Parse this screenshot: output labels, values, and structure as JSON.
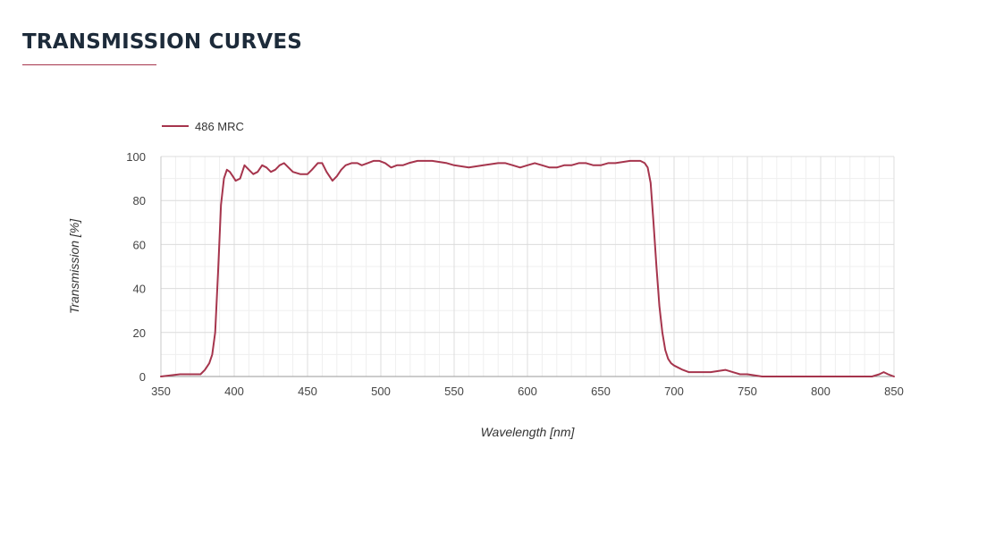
{
  "header": {
    "title": "TRANSMISSION CURVES"
  },
  "colors": {
    "title": "#1d2b3a",
    "accent": "#a6354d",
    "grid": "#dcdcdc",
    "axis": "#c8c8c8"
  },
  "chart_data": {
    "type": "line",
    "title": "",
    "xlabel": "Wavelength [nm]",
    "ylabel": "Transmission [%]",
    "xlim": [
      350,
      850
    ],
    "ylim": [
      0,
      100
    ],
    "xticks": [
      350,
      400,
      450,
      500,
      550,
      600,
      650,
      700,
      750,
      800,
      850
    ],
    "yticks": [
      0,
      20,
      40,
      60,
      80,
      100
    ],
    "grid": true,
    "legend": "top-left",
    "series": [
      {
        "name": "486 MRC",
        "color": "#a6354d",
        "x": [
          350,
          363,
          377,
          380,
          383,
          385,
          387,
          389,
          391,
          393,
          395,
          397,
          399,
          401,
          404,
          407,
          410,
          413,
          416,
          419,
          422,
          425,
          428,
          431,
          434,
          437,
          440,
          445,
          450,
          453,
          457,
          460,
          463,
          467,
          470,
          473,
          476,
          480,
          484,
          487,
          491,
          495,
          499,
          503,
          507,
          511,
          515,
          519,
          525,
          535,
          545,
          550,
          560,
          570,
          580,
          585,
          590,
          595,
          600,
          605,
          610,
          615,
          620,
          625,
          630,
          635,
          640,
          645,
          650,
          655,
          660,
          670,
          677,
          680,
          682,
          684,
          686,
          688,
          690,
          692,
          694,
          696,
          698,
          700,
          703,
          706,
          710,
          715,
          725,
          735,
          740,
          745,
          750,
          760,
          780,
          800,
          820,
          835,
          840,
          843,
          846,
          850
        ],
        "y": [
          0,
          1,
          1,
          3,
          6,
          10,
          20,
          48,
          78,
          90,
          94,
          93,
          91,
          89,
          90,
          96,
          94,
          92,
          93,
          96,
          95,
          93,
          94,
          96,
          97,
          95,
          93,
          92,
          92,
          94,
          97,
          97,
          93,
          89,
          91,
          94,
          96,
          97,
          97,
          96,
          97,
          98,
          98,
          97,
          95,
          96,
          96,
          97,
          98,
          98,
          97,
          96,
          95,
          96,
          97,
          97,
          96,
          95,
          96,
          97,
          96,
          95,
          95,
          96,
          96,
          97,
          97,
          96,
          96,
          97,
          97,
          98,
          98,
          97,
          95,
          88,
          70,
          50,
          32,
          20,
          12,
          8,
          6,
          5,
          4,
          3,
          2,
          2,
          2,
          3,
          2,
          1,
          1,
          0,
          0,
          0,
          0,
          0,
          1,
          2,
          1,
          0
        ]
      }
    ]
  }
}
